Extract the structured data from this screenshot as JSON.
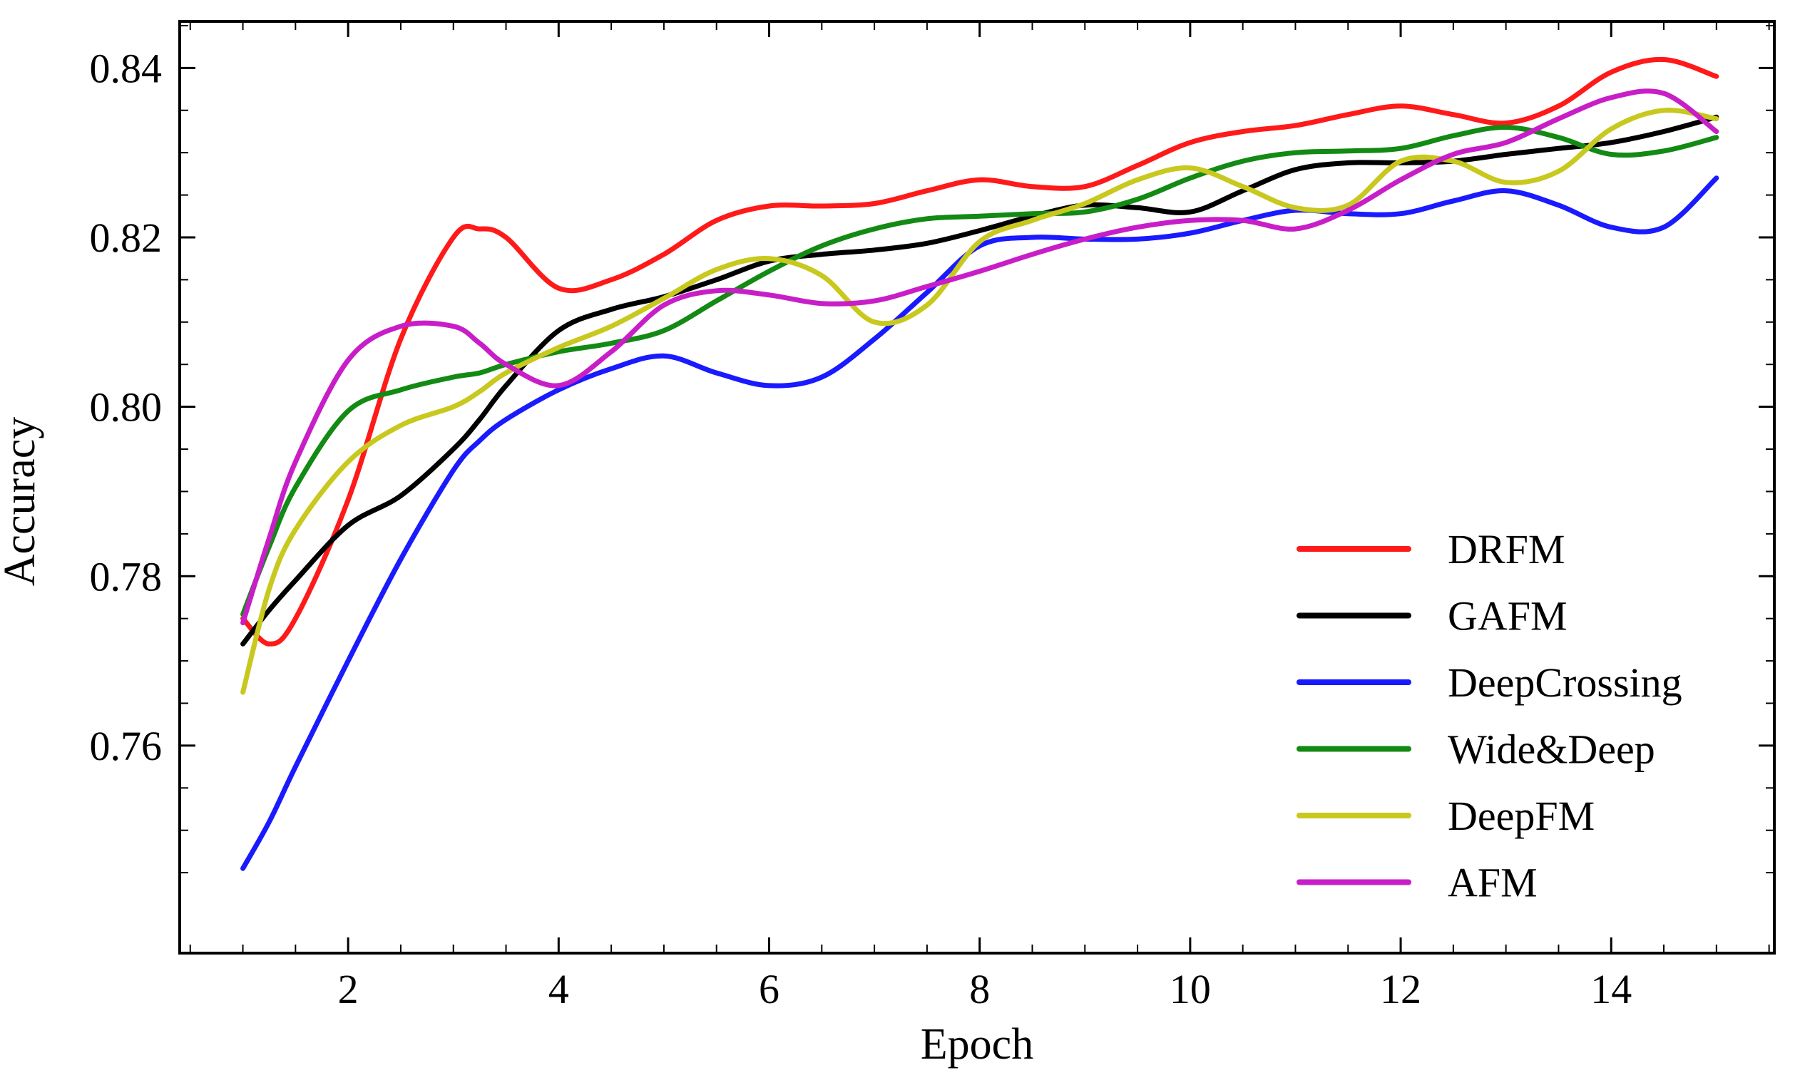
{
  "chart_data": {
    "type": "line",
    "title": "",
    "xlabel": "Epoch",
    "ylabel": "Accuracy",
    "xlim": [
      0.4,
      15.55
    ],
    "ylim": [
      0.7355,
      0.8455
    ],
    "x_ticks": [
      2,
      4,
      6,
      8,
      10,
      12,
      14
    ],
    "x_tick_labels": [
      "2",
      "4",
      "6",
      "8",
      "10",
      "12",
      "14"
    ],
    "y_ticks": [
      0.76,
      0.78,
      0.8,
      0.82,
      0.84
    ],
    "y_tick_labels": [
      "0.76",
      "0.78",
      "0.80",
      "0.82",
      "0.84"
    ],
    "grid": false,
    "legend_position": "bottom-right",
    "x": [
      1,
      1.25,
      1.5,
      2,
      2.5,
      3,
      3.25,
      3.5,
      4,
      4.5,
      5,
      5.5,
      6,
      6.5,
      7,
      7.5,
      8,
      8.5,
      9,
      9.5,
      10,
      10.5,
      11,
      11.5,
      12,
      12.5,
      13,
      13.5,
      14,
      14.5,
      15
    ],
    "series": [
      {
        "name": "DRFM",
        "color": "#ff1a1a",
        "values": [
          0.775,
          0.772,
          0.775,
          0.789,
          0.808,
          0.82,
          0.821,
          0.82,
          0.814,
          0.815,
          0.818,
          0.822,
          0.8237,
          0.8237,
          0.824,
          0.8255,
          0.8268,
          0.826,
          0.826,
          0.8285,
          0.8312,
          0.8325,
          0.8332,
          0.8345,
          0.8355,
          0.8345,
          0.8335,
          0.8355,
          0.8395,
          0.841,
          0.839
        ]
      },
      {
        "name": "GAFM",
        "color": "#000000",
        "values": [
          0.772,
          0.776,
          0.7795,
          0.786,
          0.7895,
          0.795,
          0.7985,
          0.8025,
          0.809,
          0.8115,
          0.813,
          0.815,
          0.8172,
          0.818,
          0.8185,
          0.8193,
          0.8208,
          0.8225,
          0.8238,
          0.8235,
          0.823,
          0.8255,
          0.828,
          0.8288,
          0.8288,
          0.829,
          0.8298,
          0.8305,
          0.8312,
          0.8325,
          0.8342
        ]
      },
      {
        "name": "DeepCrossing",
        "color": "#1a1aff",
        "values": [
          0.7455,
          0.751,
          0.7575,
          0.77,
          0.782,
          0.7925,
          0.796,
          0.7985,
          0.802,
          0.8045,
          0.806,
          0.804,
          0.8025,
          0.8035,
          0.808,
          0.8135,
          0.819,
          0.82,
          0.8198,
          0.8198,
          0.8205,
          0.822,
          0.8232,
          0.8228,
          0.8228,
          0.8243,
          0.8255,
          0.8238,
          0.8212,
          0.8212,
          0.827
        ]
      },
      {
        "name": "Wide&Deep",
        "color": "#138a13",
        "values": [
          0.7755,
          0.7835,
          0.7905,
          0.7995,
          0.802,
          0.8035,
          0.804,
          0.805,
          0.8065,
          0.8075,
          0.809,
          0.8125,
          0.816,
          0.819,
          0.821,
          0.8222,
          0.8225,
          0.8228,
          0.823,
          0.8245,
          0.827,
          0.829,
          0.83,
          0.8302,
          0.8305,
          0.832,
          0.833,
          0.8318,
          0.8298,
          0.8302,
          0.8318
        ]
      },
      {
        "name": "DeepFM",
        "color": "#c8c81e",
        "values": [
          0.7663,
          0.7785,
          0.7855,
          0.7935,
          0.7978,
          0.8,
          0.8018,
          0.804,
          0.807,
          0.8095,
          0.8128,
          0.8162,
          0.8175,
          0.8155,
          0.81,
          0.812,
          0.8195,
          0.822,
          0.824,
          0.8268,
          0.8282,
          0.826,
          0.8235,
          0.8238,
          0.829,
          0.829,
          0.8265,
          0.8278,
          0.8328,
          0.835,
          0.834
        ]
      },
      {
        "name": "AFM",
        "color": "#c81ec8",
        "values": [
          0.7745,
          0.7845,
          0.7935,
          0.8055,
          0.8095,
          0.8095,
          0.8075,
          0.805,
          0.8025,
          0.8065,
          0.812,
          0.8137,
          0.8132,
          0.8122,
          0.8125,
          0.8142,
          0.816,
          0.818,
          0.8198,
          0.8212,
          0.822,
          0.822,
          0.821,
          0.8232,
          0.8268,
          0.8298,
          0.8312,
          0.834,
          0.8365,
          0.837,
          0.8325
        ]
      }
    ]
  }
}
